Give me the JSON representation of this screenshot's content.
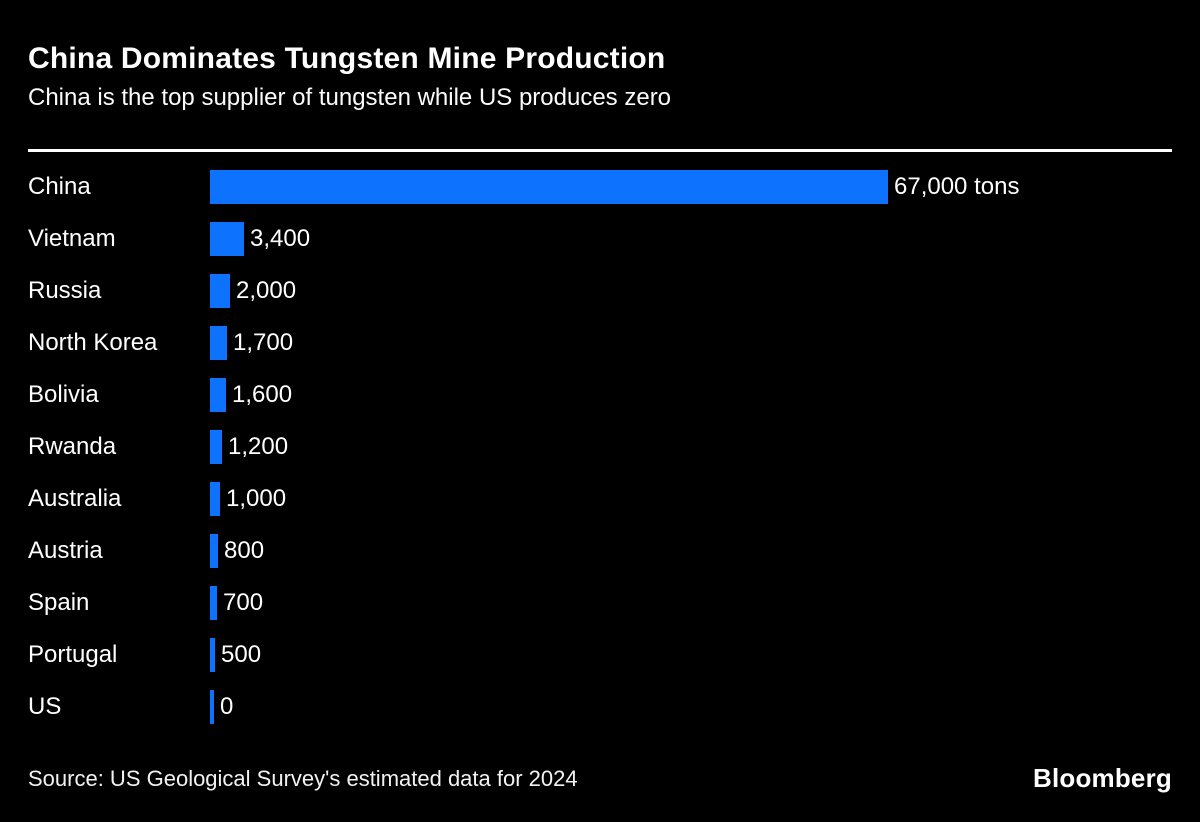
{
  "header": {
    "title": "China Dominates Tungsten Mine Production",
    "subtitle": "China is the top supplier of tungsten while US produces zero"
  },
  "colors": {
    "background": "#000000",
    "bar": "#0d73ff",
    "text": "#ffffff",
    "rule": "#ffffff"
  },
  "chart_data": {
    "type": "bar",
    "orientation": "horizontal",
    "title": "China Dominates Tungsten Mine Production",
    "subtitle": "China is the top supplier of tungsten while US produces zero",
    "categories": [
      "China",
      "Vietnam",
      "Russia",
      "North Korea",
      "Bolivia",
      "Rwanda",
      "Australia",
      "Austria",
      "Spain",
      "Portugal",
      "US"
    ],
    "values": [
      67000,
      3400,
      2000,
      1700,
      1600,
      1200,
      1000,
      800,
      700,
      500,
      0
    ],
    "value_labels": [
      "67,000 tons",
      "3,400",
      "2,000",
      "1,700",
      "1,600",
      "1,200",
      "1,000",
      "800",
      "700",
      "500",
      "0"
    ],
    "unit": "tons",
    "xlim": [
      0,
      67000
    ],
    "grid": false,
    "legend": false,
    "source": "Source: US Geological Survey's estimated data for 2024"
  },
  "footer": {
    "source": "Source: US Geological Survey's estimated data for 2024",
    "brand": "Bloomberg"
  }
}
